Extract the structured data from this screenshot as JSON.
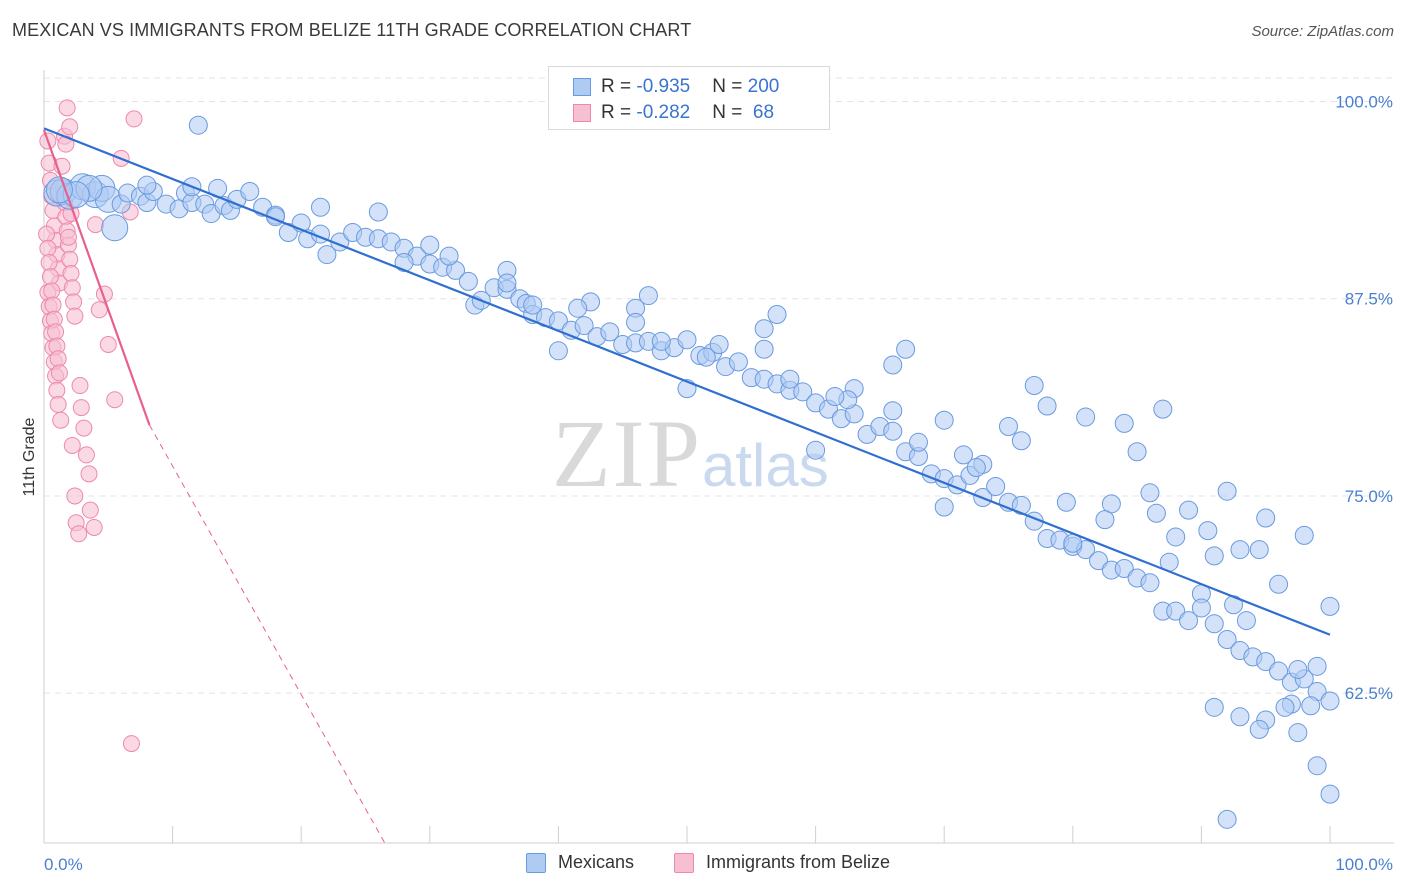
{
  "header": {
    "title": "MEXICAN VS IMMIGRANTS FROM BELIZE 11TH GRADE CORRELATION CHART",
    "source": "Source: ZipAtlas.com"
  },
  "watermark": {
    "zip": "ZIP",
    "atlas": "atlas"
  },
  "legend": {
    "series1": {
      "r_label": "R = ",
      "r_value": "-0.935",
      "n_label": "N = ",
      "n_value": "200"
    },
    "series2": {
      "r_label": "R = ",
      "r_value": "-0.282",
      "n_label": "N = ",
      "n_value": " 68"
    }
  },
  "colors": {
    "blue_fill": "#aecbf2",
    "blue_stroke": "#6a9ae0",
    "blue_line": "#2f6fd0",
    "pink_fill": "#f7c0d2",
    "pink_stroke": "#ee89aa",
    "pink_line": "#e8608c",
    "grid": "#e3e3e3",
    "tick_label": "#4a7fd0"
  },
  "chart_data": {
    "type": "scatter",
    "title": "MEXICAN VS IMMIGRANTS FROM BELIZE 11TH GRADE CORRELATION CHART",
    "xlabel": "",
    "ylabel": "11th Grade",
    "xlim": [
      0,
      100
    ],
    "ylim": [
      53,
      102
    ],
    "x_tick_labels": [
      "0.0%",
      "100.0%"
    ],
    "y_ticks": [
      62.5,
      75.0,
      87.5,
      100.0
    ],
    "y_tick_labels": [
      "62.5%",
      "75.0%",
      "87.5%",
      "100.0%"
    ],
    "grid": true,
    "legend_position": "bottom",
    "series": [
      {
        "name": "Mexicans",
        "color": "#6a9ae0",
        "trend": {
          "x": [
            0,
            100
          ],
          "y": [
            98.3,
            66.2
          ],
          "style": "solid"
        },
        "points": [
          [
            1,
            94.2
          ],
          [
            1.5,
            94.3
          ],
          [
            2,
            94
          ],
          [
            3,
            94.6
          ],
          [
            4,
            94.1
          ],
          [
            4.5,
            94.5
          ],
          [
            5,
            93.8
          ],
          [
            6,
            93.5
          ],
          [
            6.5,
            94.2
          ],
          [
            7.5,
            94
          ],
          [
            8,
            93.6
          ],
          [
            8.5,
            94.3
          ],
          [
            9.5,
            93.5
          ],
          [
            10.5,
            93.2
          ],
          [
            11,
            94.2
          ],
          [
            11.5,
            93.6
          ],
          [
            12.5,
            93.5
          ],
          [
            13,
            92.9
          ],
          [
            13.5,
            94.5
          ],
          [
            14,
            93.4
          ],
          [
            14.5,
            93.1
          ],
          [
            15,
            93.8
          ],
          [
            17,
            93.3
          ],
          [
            18,
            92.8
          ],
          [
            19,
            91.7
          ],
          [
            20,
            92.3
          ],
          [
            20.5,
            91.3
          ],
          [
            21.5,
            91.6
          ],
          [
            22,
            90.3
          ],
          [
            23,
            91.1
          ],
          [
            24,
            91.7
          ],
          [
            25,
            91.4
          ],
          [
            26,
            91.3
          ],
          [
            27,
            91.1
          ],
          [
            28,
            90.7
          ],
          [
            29,
            90.2
          ],
          [
            30,
            89.7
          ],
          [
            31,
            89.5
          ],
          [
            32,
            89.3
          ],
          [
            33,
            88.6
          ],
          [
            33.5,
            87.1
          ],
          [
            34,
            87.4
          ],
          [
            35,
            88.2
          ],
          [
            36,
            88.1
          ],
          [
            37,
            87.5
          ],
          [
            37.5,
            87.2
          ],
          [
            38,
            86.5
          ],
          [
            39,
            86.3
          ],
          [
            40,
            86.1
          ],
          [
            41,
            85.5
          ],
          [
            42,
            85.8
          ],
          [
            43,
            85.1
          ],
          [
            44,
            85.4
          ],
          [
            45,
            84.6
          ],
          [
            46,
            84.7
          ],
          [
            47,
            84.8
          ],
          [
            48,
            84.2
          ],
          [
            49,
            84.4
          ],
          [
            50,
            84.9
          ],
          [
            51,
            83.9
          ],
          [
            52,
            84.1
          ],
          [
            53,
            83.2
          ],
          [
            54,
            83.5
          ],
          [
            55,
            82.5
          ],
          [
            56,
            82.4
          ],
          [
            57,
            82.1
          ],
          [
            58,
            81.7
          ],
          [
            59,
            81.6
          ],
          [
            60,
            80.9
          ],
          [
            61,
            80.5
          ],
          [
            62,
            79.9
          ],
          [
            63,
            80.2
          ],
          [
            64,
            78.9
          ],
          [
            65,
            79.4
          ],
          [
            66,
            79.1
          ],
          [
            67,
            77.8
          ],
          [
            68,
            77.5
          ],
          [
            69,
            76.4
          ],
          [
            70,
            76.1
          ],
          [
            71,
            75.7
          ],
          [
            72,
            76.3
          ],
          [
            73,
            74.9
          ],
          [
            74,
            75.6
          ],
          [
            75,
            74.6
          ],
          [
            76,
            74.4
          ],
          [
            77,
            73.4
          ],
          [
            78,
            72.3
          ],
          [
            79,
            72.2
          ],
          [
            80,
            71.8
          ],
          [
            81,
            71.6
          ],
          [
            82,
            70.9
          ],
          [
            83,
            70.3
          ],
          [
            84,
            70.4
          ],
          [
            85,
            69.8
          ],
          [
            86,
            69.5
          ],
          [
            87,
            67.7
          ],
          [
            88,
            67.7
          ],
          [
            89,
            67.1
          ],
          [
            90,
            68.8
          ],
          [
            91,
            66.9
          ],
          [
            92,
            65.9
          ],
          [
            93,
            65.2
          ],
          [
            94,
            64.8
          ],
          [
            95,
            64.5
          ],
          [
            96,
            63.9
          ],
          [
            97,
            63.2
          ],
          [
            98,
            63.4
          ],
          [
            99,
            62.6
          ],
          [
            100,
            62.0
          ],
          [
            12,
            98.5
          ],
          [
            30,
            90.9
          ],
          [
            40,
            84.2
          ],
          [
            50,
            81.8
          ],
          [
            60,
            77.9
          ],
          [
            70,
            74.3
          ],
          [
            80,
            72.0
          ],
          [
            90,
            67.9
          ],
          [
            75,
            79.4
          ],
          [
            85,
            77.8
          ],
          [
            95,
            73.6
          ],
          [
            88,
            72.4
          ],
          [
            78,
            80.7
          ],
          [
            84,
            79.6
          ],
          [
            70,
            79.8
          ],
          [
            66,
            83.3
          ],
          [
            56,
            85.6
          ],
          [
            46,
            86.9
          ],
          [
            36,
            89.3
          ],
          [
            26,
            93.0
          ],
          [
            16,
            94.3
          ],
          [
            63,
            81.8
          ],
          [
            73,
            77.0
          ],
          [
            83,
            74.5
          ],
          [
            93,
            71.6
          ],
          [
            58,
            82.4
          ],
          [
            68,
            78.4
          ],
          [
            48,
            84.8
          ],
          [
            38,
            87.1
          ],
          [
            28,
            89.8
          ],
          [
            18,
            92.7
          ],
          [
            8,
            94.7
          ],
          [
            5.5,
            92.0
          ],
          [
            3.5,
            94.5
          ],
          [
            2.5,
            94.1
          ],
          [
            1.2,
            94.4
          ],
          [
            42.5,
            87.3
          ],
          [
            52.5,
            84.6
          ],
          [
            62.5,
            81.1
          ],
          [
            72.5,
            76.8
          ],
          [
            82.5,
            73.5
          ],
          [
            92.5,
            68.1
          ],
          [
            97.5,
            64.0
          ],
          [
            86,
            75.2
          ],
          [
            76,
            78.5
          ],
          [
            66,
            80.4
          ],
          [
            56,
            84.3
          ],
          [
            46,
            86.0
          ],
          [
            36,
            88.5
          ],
          [
            91,
            71.2
          ],
          [
            89,
            74.1
          ],
          [
            81,
            80.0
          ],
          [
            86.5,
            73.9
          ],
          [
            93.5,
            67.1
          ],
          [
            99,
            64.2
          ],
          [
            94.5,
            71.6
          ],
          [
            90.5,
            72.8
          ],
          [
            87.5,
            70.8
          ],
          [
            79.5,
            74.6
          ],
          [
            71.5,
            77.6
          ],
          [
            61.5,
            81.3
          ],
          [
            51.5,
            83.8
          ],
          [
            41.5,
            86.9
          ],
          [
            31.5,
            90.2
          ],
          [
            21.5,
            93.3
          ],
          [
            11.5,
            94.6
          ],
          [
            96,
            69.4
          ],
          [
            98,
            72.5
          ],
          [
            92,
            75.3
          ],
          [
            87,
            80.5
          ],
          [
            77,
            82.0
          ],
          [
            67,
            84.3
          ],
          [
            57,
            86.5
          ],
          [
            47,
            87.7
          ],
          [
            100,
            68.0
          ],
          [
            93,
            61.0
          ],
          [
            95,
            60.8
          ],
          [
            97.5,
            60.0
          ],
          [
            98.5,
            61.7
          ],
          [
            99,
            57.9
          ],
          [
            94.5,
            60.2
          ],
          [
            91,
            61.6
          ],
          [
            97,
            61.8
          ],
          [
            96.5,
            61.6
          ],
          [
            100,
            56.1
          ],
          [
            92,
            54.5
          ]
        ]
      },
      {
        "name": "Immigrants from Belize",
        "color": "#ee89aa",
        "trend": {
          "x": [
            0,
            8.2
          ],
          "y": [
            98.2,
            79.5
          ],
          "dashed_extension_to": [
            26.5,
            53
          ]
        },
        "points": [
          [
            0.3,
            97.5
          ],
          [
            0.4,
            96.1
          ],
          [
            0.5,
            95.0
          ],
          [
            0.6,
            94.0
          ],
          [
            0.7,
            93.1
          ],
          [
            0.8,
            92.1
          ],
          [
            0.9,
            91.2
          ],
          [
            1,
            90.3
          ],
          [
            1.1,
            89.4
          ],
          [
            1.2,
            88.5
          ],
          [
            0.3,
            87.9
          ],
          [
            0.4,
            87.0
          ],
          [
            0.5,
            86.1
          ],
          [
            0.6,
            85.3
          ],
          [
            0.7,
            84.4
          ],
          [
            0.8,
            83.5
          ],
          [
            0.9,
            82.6
          ],
          [
            1,
            81.7
          ],
          [
            1.1,
            80.8
          ],
          [
            1.3,
            79.8
          ],
          [
            0.2,
            91.6
          ],
          [
            0.3,
            90.7
          ],
          [
            0.4,
            89.8
          ],
          [
            0.5,
            88.9
          ],
          [
            0.6,
            88.0
          ],
          [
            0.7,
            87.1
          ],
          [
            0.8,
            86.2
          ],
          [
            0.9,
            85.4
          ],
          [
            1,
            84.5
          ],
          [
            1.1,
            83.7
          ],
          [
            1.2,
            82.8
          ],
          [
            1.5,
            94.5
          ],
          [
            1.6,
            93.6
          ],
          [
            1.7,
            92.7
          ],
          [
            1.8,
            91.8
          ],
          [
            1.9,
            90.9
          ],
          [
            2,
            90.0
          ],
          [
            2.1,
            89.1
          ],
          [
            2.2,
            88.2
          ],
          [
            2.3,
            87.3
          ],
          [
            2.4,
            86.4
          ],
          [
            1.4,
            95.9
          ],
          [
            1.6,
            97.8
          ],
          [
            1.8,
            99.6
          ],
          [
            2,
            98.4
          ],
          [
            1.7,
            97.3
          ],
          [
            2.2,
            78.2
          ],
          [
            2.4,
            75.0
          ],
          [
            2.5,
            73.3
          ],
          [
            2.7,
            72.6
          ],
          [
            2.8,
            82.0
          ],
          [
            2.9,
            80.6
          ],
          [
            3.1,
            79.3
          ],
          [
            3.3,
            77.6
          ],
          [
            3.5,
            76.4
          ],
          [
            3.6,
            74.1
          ],
          [
            3.9,
            73.0
          ],
          [
            4,
            92.2
          ],
          [
            4.3,
            86.8
          ],
          [
            4.7,
            87.8
          ],
          [
            5,
            84.6
          ],
          [
            5.5,
            81.1
          ],
          [
            6,
            96.4
          ],
          [
            6.7,
            93.0
          ],
          [
            6.8,
            59.3
          ],
          [
            7,
            98.9
          ],
          [
            2.1,
            92.9
          ],
          [
            1.9,
            91.4
          ]
        ]
      }
    ]
  }
}
